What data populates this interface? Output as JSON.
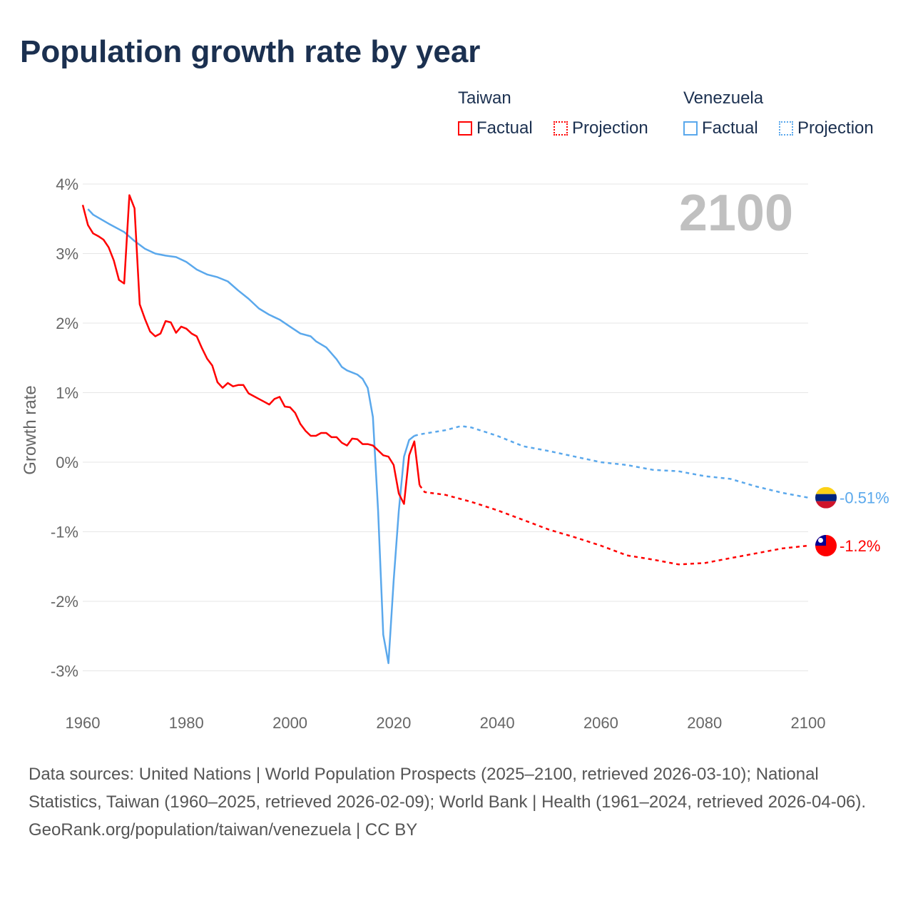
{
  "title": "Population growth rate by year",
  "legend": {
    "groups": [
      {
        "name": "Taiwan",
        "factual": "Factual",
        "projection": "Projection",
        "color": "#ff0000"
      },
      {
        "name": "Venezuela",
        "factual": "Factual",
        "projection": "Projection",
        "color": "#5aa8ec"
      }
    ]
  },
  "year_label": "2100",
  "footer": {
    "sources": "Data sources: United Nations | World Population Prospects (2025–2100, retrieved 2026-03-10); National Statistics, Taiwan (1960–2025, retrieved 2026-02-09); World Bank | Health (1961–2024, retrieved 2026-04-06).",
    "credit": "GeoRank.org/population/taiwan/venezuela | CC BY"
  },
  "chart_data": {
    "type": "line",
    "ylabel": "Growth rate",
    "xlim": [
      1960,
      2100
    ],
    "ylim": [
      -3.5,
      4
    ],
    "yticks": [
      {
        "v": 4,
        "l": "4%"
      },
      {
        "v": 3,
        "l": "3%"
      },
      {
        "v": 2,
        "l": "2%"
      },
      {
        "v": 1,
        "l": "1%"
      },
      {
        "v": 0,
        "l": "0%"
      },
      {
        "v": -1,
        "l": "-1%"
      },
      {
        "v": -2,
        "l": "-2%"
      },
      {
        "v": -3,
        "l": "-3%"
      }
    ],
    "xticks": [
      1960,
      1980,
      2000,
      2020,
      2040,
      2060,
      2080,
      2100
    ],
    "series": [
      {
        "name": "Venezuela Factual",
        "color": "#5aa8ec",
        "dashed": false,
        "x": [
          1961,
          1962,
          1965,
          1968,
          1970,
          1972,
          1974,
          1976,
          1978,
          1980,
          1982,
          1984,
          1986,
          1988,
          1990,
          1992,
          1994,
          1996,
          1998,
          2000,
          2002,
          2004,
          2005,
          2007,
          2009,
          2010,
          2011,
          2013,
          2014,
          2015,
          2016,
          2017,
          2018,
          2019,
          2020,
          2021,
          2022,
          2023,
          2024
        ],
        "y": [
          3.64,
          3.56,
          3.43,
          3.31,
          3.18,
          3.07,
          3.0,
          2.97,
          2.95,
          2.88,
          2.77,
          2.7,
          2.66,
          2.6,
          2.47,
          2.35,
          2.21,
          2.12,
          2.05,
          1.95,
          1.85,
          1.81,
          1.74,
          1.65,
          1.48,
          1.37,
          1.32,
          1.26,
          1.2,
          1.07,
          0.65,
          -0.7,
          -2.48,
          -2.89,
          -1.7,
          -0.7,
          0.08,
          0.32,
          0.38
        ]
      },
      {
        "name": "Venezuela Projection",
        "color": "#5aa8ec",
        "dashed": true,
        "x": [
          2024,
          2025,
          2030,
          2033,
          2035,
          2040,
          2045,
          2050,
          2055,
          2060,
          2065,
          2070,
          2075,
          2080,
          2085,
          2090,
          2095,
          2100
        ],
        "y": [
          0.38,
          0.4,
          0.46,
          0.52,
          0.5,
          0.38,
          0.23,
          0.16,
          0.08,
          0.0,
          -0.04,
          -0.11,
          -0.13,
          -0.2,
          -0.24,
          -0.35,
          -0.44,
          -0.51
        ]
      },
      {
        "name": "Taiwan Factual",
        "color": "#ff0000",
        "dashed": false,
        "x": [
          1960,
          1961,
          1962,
          1963,
          1964,
          1965,
          1966,
          1967,
          1968,
          1969,
          1970,
          1971,
          1972,
          1973,
          1974,
          1975,
          1976,
          1977,
          1978,
          1979,
          1980,
          1981,
          1982,
          1983,
          1984,
          1985,
          1986,
          1987,
          1988,
          1989,
          1990,
          1991,
          1992,
          1993,
          1994,
          1995,
          1996,
          1997,
          1998,
          1999,
          2000,
          2001,
          2002,
          2003,
          2004,
          2005,
          2006,
          2007,
          2008,
          2009,
          2010,
          2011,
          2012,
          2013,
          2014,
          2015,
          2016,
          2017,
          2018,
          2019,
          2020,
          2021,
          2022,
          2023,
          2024,
          2025
        ],
        "y": [
          3.7,
          3.41,
          3.29,
          3.25,
          3.2,
          3.09,
          2.9,
          2.62,
          2.57,
          3.84,
          3.65,
          2.27,
          2.06,
          1.88,
          1.81,
          1.85,
          2.03,
          2.01,
          1.86,
          1.95,
          1.92,
          1.85,
          1.81,
          1.64,
          1.49,
          1.39,
          1.15,
          1.07,
          1.14,
          1.09,
          1.11,
          1.11,
          0.99,
          0.95,
          0.91,
          0.87,
          0.83,
          0.91,
          0.94,
          0.8,
          0.79,
          0.71,
          0.55,
          0.45,
          0.38,
          0.38,
          0.42,
          0.42,
          0.36,
          0.36,
          0.28,
          0.24,
          0.34,
          0.33,
          0.26,
          0.26,
          0.24,
          0.17,
          0.1,
          0.08,
          -0.04,
          -0.45,
          -0.6,
          0.1,
          0.3,
          -0.33
        ]
      },
      {
        "name": "Taiwan Projection",
        "color": "#ff0000",
        "dashed": true,
        "x": [
          2025,
          2026,
          2030,
          2035,
          2040,
          2045,
          2050,
          2055,
          2060,
          2065,
          2070,
          2075,
          2080,
          2085,
          2090,
          2095,
          2100
        ],
        "y": [
          -0.33,
          -0.43,
          -0.47,
          -0.57,
          -0.69,
          -0.83,
          -0.97,
          -1.08,
          -1.2,
          -1.34,
          -1.4,
          -1.47,
          -1.45,
          -1.38,
          -1.31,
          -1.24,
          -1.2
        ]
      }
    ],
    "end_labels": [
      {
        "country": "Venezuela",
        "text": "-0.51%",
        "color": "#5aa8ec",
        "value": -0.51
      },
      {
        "country": "Taiwan",
        "text": "-1.2%",
        "color": "#ff0000",
        "value": -1.2
      }
    ]
  }
}
